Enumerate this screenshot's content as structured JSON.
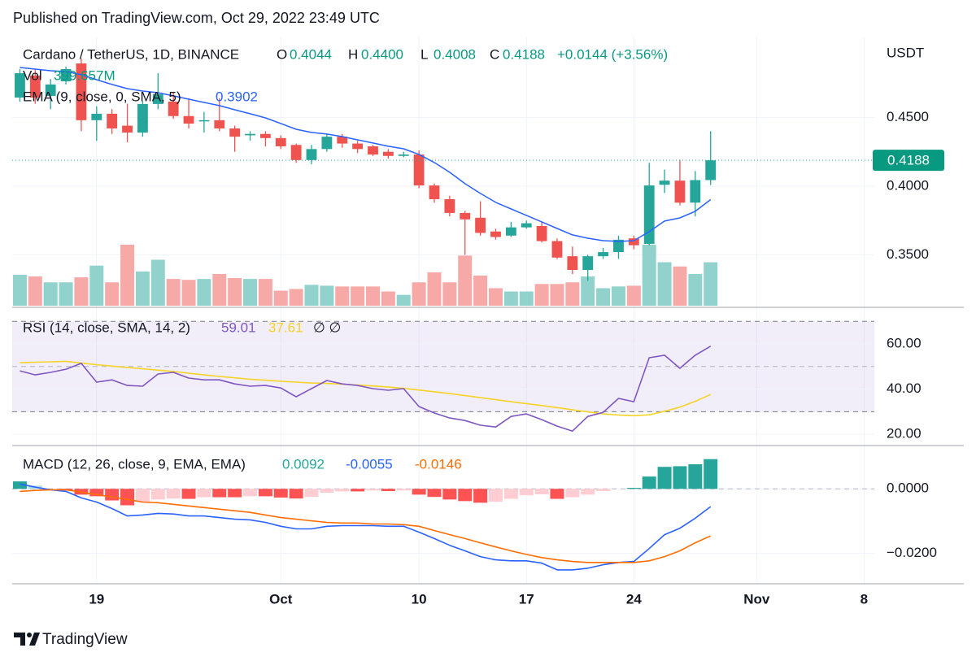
{
  "header": {
    "published": "Published on TradingView.com, Oct 29, 2022 23:49 UTC"
  },
  "footer": {
    "brand": "TradingView"
  },
  "chart_data": {
    "type": "candlestick",
    "title": "Cardano / TetherUS, 1D, BINANCE",
    "legend": [
      {
        "key": "O",
        "value": "0.4044"
      },
      {
        "key": "H",
        "value": "0.4400"
      },
      {
        "key": "L",
        "value": "0.4008"
      },
      {
        "key": "C",
        "value": "0.4188"
      }
    ],
    "change": "+0.0144 (+3.56%)",
    "y_axis_label": "USDT",
    "x": [
      "2022-09-14",
      "2022-09-15",
      "2022-09-16",
      "2022-09-17",
      "2022-09-18",
      "2022-09-19",
      "2022-09-20",
      "2022-09-21",
      "2022-09-22",
      "2022-09-23",
      "2022-09-24",
      "2022-09-25",
      "2022-09-26",
      "2022-09-27",
      "2022-09-28",
      "2022-09-29",
      "2022-09-30",
      "2022-10-01",
      "2022-10-02",
      "2022-10-03",
      "2022-10-04",
      "2022-10-05",
      "2022-10-06",
      "2022-10-07",
      "2022-10-08",
      "2022-10-09",
      "2022-10-10",
      "2022-10-11",
      "2022-10-12",
      "2022-10-13",
      "2022-10-14",
      "2022-10-15",
      "2022-10-16",
      "2022-10-17",
      "2022-10-18",
      "2022-10-19",
      "2022-10-20",
      "2022-10-21",
      "2022-10-22",
      "2022-10-23",
      "2022-10-24",
      "2022-10-25",
      "2022-10-26",
      "2022-10-27",
      "2022-10-28",
      "2022-10-29"
    ],
    "open": [
      0.4645,
      0.4805,
      0.4657,
      0.4763,
      0.4893,
      0.448,
      0.4527,
      0.444,
      0.439,
      0.4598,
      0.4616,
      0.451,
      0.4475,
      0.448,
      0.442,
      0.437,
      0.438,
      0.435,
      0.43,
      0.419,
      0.427,
      0.436,
      0.431,
      0.429,
      0.425,
      0.422,
      0.423,
      0.4005,
      0.3905,
      0.3805,
      0.377,
      0.367,
      0.364,
      0.37,
      0.371,
      0.36,
      0.349,
      0.339,
      0.349,
      0.352,
      0.362,
      0.358,
      0.401,
      0.404,
      0.388,
      0.4044
    ],
    "high": [
      0.4852,
      0.4852,
      0.478,
      0.487,
      0.493,
      0.458,
      0.456,
      0.46,
      0.462,
      0.4822,
      0.468,
      0.464,
      0.454,
      0.464,
      0.444,
      0.44,
      0.44,
      0.437,
      0.431,
      0.43,
      0.438,
      0.438,
      0.433,
      0.43,
      0.427,
      0.425,
      0.426,
      0.402,
      0.393,
      0.382,
      0.389,
      0.369,
      0.374,
      0.375,
      0.374,
      0.362,
      0.356,
      0.35,
      0.355,
      0.364,
      0.364,
      0.417,
      0.412,
      0.419,
      0.411,
      0.44
    ],
    "low": [
      0.4615,
      0.46,
      0.456,
      0.474,
      0.44,
      0.433,
      0.438,
      0.432,
      0.436,
      0.456,
      0.449,
      0.442,
      0.439,
      0.44,
      0.425,
      0.433,
      0.429,
      0.427,
      0.417,
      0.416,
      0.425,
      0.428,
      0.424,
      0.422,
      0.42,
      0.421,
      0.3985,
      0.388,
      0.378,
      0.35,
      0.364,
      0.361,
      0.363,
      0.369,
      0.359,
      0.347,
      0.336,
      0.331,
      0.347,
      0.347,
      0.354,
      0.357,
      0.395,
      0.386,
      0.378,
      0.4008
    ],
    "close": [
      0.4822,
      0.4645,
      0.474,
      0.4852,
      0.448,
      0.4527,
      0.442,
      0.439,
      0.4598,
      0.467,
      0.451,
      0.4455,
      0.448,
      0.442,
      0.436,
      0.438,
      0.435,
      0.429,
      0.419,
      0.427,
      0.436,
      0.431,
      0.427,
      0.423,
      0.422,
      0.423,
      0.4005,
      0.3905,
      0.3805,
      0.3758,
      0.366,
      0.363,
      0.37,
      0.373,
      0.36,
      0.348,
      0.339,
      0.349,
      0.352,
      0.361,
      0.357,
      0.4005,
      0.404,
      0.388,
      0.4044,
      0.4188
    ],
    "up_color": "#26a69a",
    "down_color": "#ef5350",
    "xlim": [
      "2022-09-13T12:00",
      "2022-11-08T16:00"
    ],
    "xticks": [
      {
        "value": "2022-09-19",
        "label": "19"
      },
      {
        "value": "2022-10-01",
        "label": "Oct"
      },
      {
        "value": "2022-10-10",
        "label": "10"
      },
      {
        "value": "2022-10-17",
        "label": "17"
      },
      {
        "value": "2022-10-24",
        "label": "24"
      },
      {
        "value": "2022-11-01",
        "label": "Nov"
      },
      {
        "value": "2022-11-08",
        "label": "8"
      }
    ],
    "ylim": [
      0.3118,
      0.5059
    ],
    "yticks": [
      {
        "value": 0.35,
        "label": "0.3500"
      },
      {
        "value": 0.4,
        "label": "0.4000"
      },
      {
        "value": 0.45,
        "label": "0.4500"
      }
    ],
    "grid": true,
    "last_price": {
      "value": 0.4188,
      "label": "0.4188"
    },
    "volume": {
      "name": "Vol",
      "last_label": "399.657M",
      "up_color": "#92d2cc",
      "down_color": "#f7a9a7",
      "values": [
        284,
        269,
        215,
        215,
        261,
        369,
        215,
        561,
        315,
        423,
        246,
        238,
        246,
        292,
        254,
        246,
        246,
        138,
        154,
        192,
        184,
        177,
        177,
        177,
        131,
        100,
        215,
        307,
        215,
        461,
        277,
        161,
        131,
        131,
        200,
        200,
        215,
        269,
        161,
        177,
        184,
        561,
        400,
        361,
        292,
        399.657
      ]
    },
    "ema": {
      "name": "EMA (9, close, 0, SMA, 5)",
      "color": "#2962ff",
      "values": [
        0.4864,
        0.4852,
        0.484,
        0.4834,
        0.4811,
        0.4775,
        0.474,
        0.471,
        0.4692,
        0.468,
        0.4657,
        0.4633,
        0.4609,
        0.4586,
        0.4556,
        0.4527,
        0.4497,
        0.4456,
        0.4414,
        0.4391,
        0.4379,
        0.4361,
        0.4337,
        0.4314,
        0.429,
        0.4272,
        0.4231,
        0.4172,
        0.4101,
        0.4018,
        0.3947,
        0.3882,
        0.3834,
        0.3787,
        0.374,
        0.3692,
        0.3645,
        0.3621,
        0.3603,
        0.3598,
        0.3603,
        0.3669,
        0.3746,
        0.3769,
        0.3817,
        0.3902
      ]
    },
    "panes": [
      {
        "type": "line",
        "title": "RSI (14, close, SMA, 14, 2)",
        "extra": "∅ ∅",
        "ylim": [
          15,
          75.5
        ],
        "yticks": [
          {
            "value": 20,
            "label": "20.00"
          },
          {
            "value": 40,
            "label": "40.00"
          },
          {
            "value": 60,
            "label": "60.00"
          }
        ],
        "levels": [
          70,
          50,
          30
        ],
        "band_color": "rgba(126,87,194,0.10)",
        "series": [
          {
            "color": "#7e57c2",
            "values": [
              48.1,
              46.3,
              47.4,
              48.8,
              51.4,
              43.1,
              44.1,
              41.6,
              41.3,
              46.7,
              47.4,
              44.9,
              44.1,
              44.1,
              42.3,
              41.3,
              41.6,
              40.5,
              36.6,
              40.2,
              43.8,
              42.3,
              41.6,
              40.2,
              39.5,
              40.2,
              32.3,
              29.4,
              27.2,
              26.1,
              24.0,
              23.2,
              27.9,
              29.0,
              26.5,
              23.6,
              21.4,
              27.9,
              29.7,
              35.9,
              34.4,
              53.9,
              55.0,
              49.2,
              55.0,
              59.01
            ]
          },
          {
            "color": "#f5d327",
            "values": [
              51.7,
              51.9,
              52.1,
              52.3,
              51.5,
              50.8,
              50.2,
              49.6,
              49.0,
              48.4,
              47.8,
              47.0,
              46.3,
              45.6,
              45.0,
              44.4,
              43.9,
              43.5,
              43.1,
              42.7,
              42.5,
              42.2,
              41.8,
              41.4,
              40.9,
              40.3,
              39.6,
              38.8,
              38.0,
              37.1,
              36.2,
              35.3,
              34.4,
              33.6,
              32.7,
              31.8,
              30.8,
              29.9,
              29.0,
              28.5,
              28.2,
              28.6,
              30.2,
              32.0,
              34.6,
              37.61
            ]
          }
        ]
      },
      {
        "type": "macd",
        "title": "MACD (12, 26, close, 9, EMA, EMA)",
        "ylim": [
          -0.0294,
          0.0129
        ],
        "yticks": [
          {
            "value": -0.02,
            "label": "−0.0200"
          },
          {
            "value": 0,
            "label": "0.0000"
          }
        ],
        "zero_line": true,
        "histogram": {
          "colors": [
            "#26a69a",
            "#b2dfdb",
            "#ff5252",
            "#ffcdd2"
          ],
          "values": [
            0.0023,
            0.001,
            0.0,
            -0.0005,
            -0.0018,
            -0.0023,
            -0.0036,
            -0.0051,
            -0.004,
            -0.0033,
            -0.003,
            -0.0031,
            -0.0026,
            -0.0026,
            -0.0026,
            -0.0023,
            -0.0023,
            -0.0027,
            -0.003,
            -0.0025,
            -0.0012,
            -0.0008,
            -0.0008,
            -0.0005,
            -0.0007,
            -0.0005,
            -0.0018,
            -0.0025,
            -0.0033,
            -0.0038,
            -0.0043,
            -0.004,
            -0.0031,
            -0.002,
            -0.0017,
            -0.0031,
            -0.0026,
            -0.0018,
            -0.0007,
            0.0,
            0.0003,
            0.0038,
            0.0068,
            0.007,
            0.0076,
            0.0092
          ]
        },
        "series": [
          {
            "color": "#2962ff",
            "values": [
              0.0015,
              0.0005,
              -0.0003,
              -0.0008,
              -0.0028,
              -0.0041,
              -0.0061,
              -0.0084,
              -0.0081,
              -0.0076,
              -0.0078,
              -0.0084,
              -0.0084,
              -0.0089,
              -0.0094,
              -0.0096,
              -0.0104,
              -0.0116,
              -0.0124,
              -0.0124,
              -0.0116,
              -0.0114,
              -0.0114,
              -0.0114,
              -0.0116,
              -0.0116,
              -0.0134,
              -0.0154,
              -0.0175,
              -0.0192,
              -0.021,
              -0.022,
              -0.0223,
              -0.0223,
              -0.023,
              -0.0251,
              -0.0251,
              -0.0246,
              -0.0235,
              -0.0228,
              -0.0225,
              -0.0185,
              -0.0142,
              -0.0122,
              -0.0091,
              -0.0055
            ]
          },
          {
            "color": "#ff6d00",
            "values": [
              -0.0008,
              -0.0005,
              -0.0003,
              -0.0003,
              -0.001,
              -0.0018,
              -0.0025,
              -0.0033,
              -0.0041,
              -0.0043,
              -0.0048,
              -0.0053,
              -0.0058,
              -0.0063,
              -0.0068,
              -0.0073,
              -0.0081,
              -0.0089,
              -0.0094,
              -0.0099,
              -0.0104,
              -0.0106,
              -0.0106,
              -0.0109,
              -0.0109,
              -0.0111,
              -0.0116,
              -0.0129,
              -0.0142,
              -0.0154,
              -0.0167,
              -0.018,
              -0.0192,
              -0.0203,
              -0.0213,
              -0.022,
              -0.0225,
              -0.0228,
              -0.0228,
              -0.0228,
              -0.0228,
              -0.0223,
              -0.021,
              -0.0192,
              -0.0167,
              -0.0146
            ]
          }
        ]
      }
    ]
  }
}
